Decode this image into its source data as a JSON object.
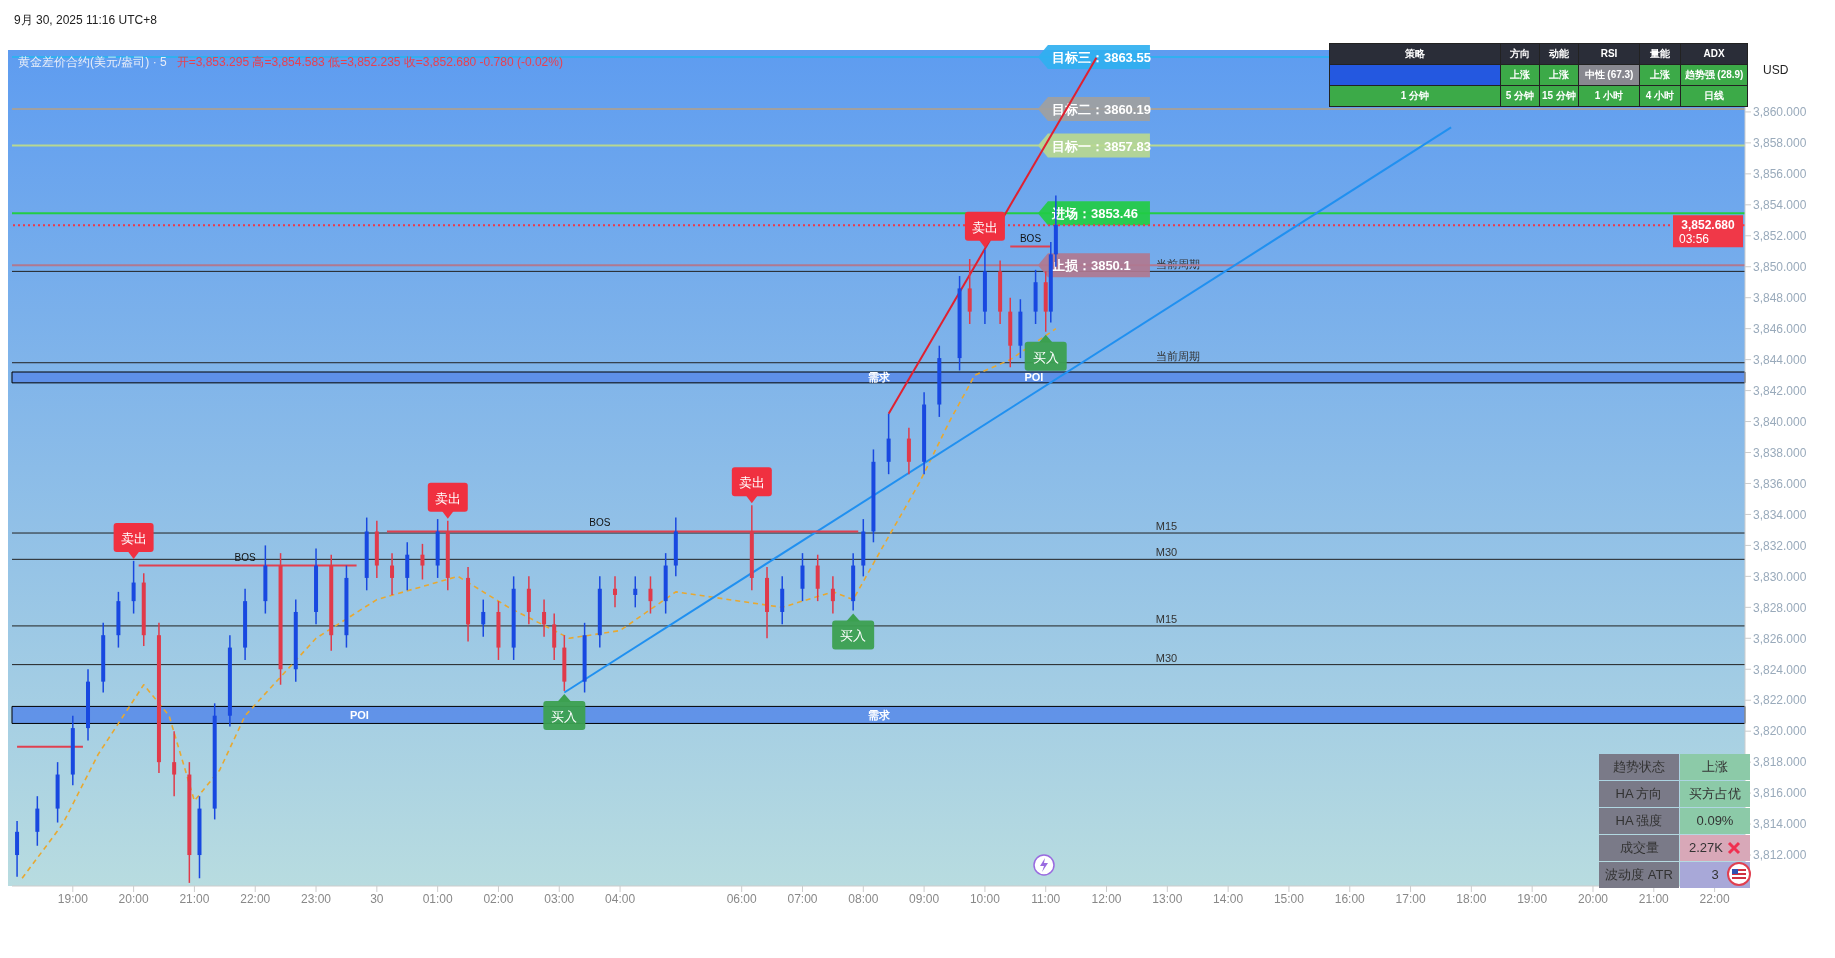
{
  "chart_data": [
    {
      "type": "candlestick",
      "title": "黄金差价合约(美元/盎司) · 5",
      "subtitle": "开=3,853.295  高=3,854.583  低=3,852.235  收=3,852.680  -0.780 (-0.02%)",
      "x": [
        "2025-09-29T18:05",
        "2025-09-29T18:25",
        "2025-09-29T18:45",
        "2025-09-29T19:00",
        "2025-09-29T19:15",
        "2025-09-29T19:30",
        "2025-09-29T19:45",
        "2025-09-29T20:00",
        "2025-09-29T20:10",
        "2025-09-29T20:25",
        "2025-09-29T20:40",
        "2025-09-29T20:55",
        "2025-09-29T21:05",
        "2025-09-29T21:20",
        "2025-09-29T21:35",
        "2025-09-29T21:50",
        "2025-09-29T22:10",
        "2025-09-29T22:25",
        "2025-09-29T22:40",
        "2025-09-29T23:00",
        "2025-09-29T23:15",
        "2025-09-29T23:30",
        "2025-09-29T23:50",
        "2025-09-30T00:00",
        "2025-09-30T00:15",
        "2025-09-30T00:30",
        "2025-09-30T00:45",
        "2025-09-30T01:00",
        "2025-09-30T01:10",
        "2025-09-30T01:30",
        "2025-09-30T01:45",
        "2025-09-30T02:00",
        "2025-09-30T02:15",
        "2025-09-30T02:30",
        "2025-09-30T02:45",
        "2025-09-30T02:55",
        "2025-09-30T03:05",
        "2025-09-30T03:25",
        "2025-09-30T03:40",
        "2025-09-30T03:55",
        "2025-09-30T04:15",
        "2025-09-30T04:30",
        "2025-09-30T04:45",
        "2025-09-30T04:55",
        "2025-09-30T06:10",
        "2025-09-30T06:25",
        "2025-09-30T06:40",
        "2025-09-30T07:00",
        "2025-09-30T07:15",
        "2025-09-30T07:30",
        "2025-09-30T07:50",
        "2025-09-30T08:00",
        "2025-09-30T08:10",
        "2025-09-30T08:25",
        "2025-09-30T08:45",
        "2025-09-30T09:00",
        "2025-09-30T09:15",
        "2025-09-30T09:35",
        "2025-09-30T09:45",
        "2025-09-30T10:00",
        "2025-09-30T10:15",
        "2025-09-30T10:25",
        "2025-09-30T10:35",
        "2025-09-30T10:50",
        "2025-09-30T11:00",
        "2025-09-30T11:05",
        "2025-09-30T11:10"
      ],
      "ohlc": [
        [
          3812.0,
          3814.2,
          3810.6,
          3813.5
        ],
        [
          3813.5,
          3815.8,
          3812.6,
          3815.0
        ],
        [
          3815.0,
          3818.0,
          3814.1,
          3817.2
        ],
        [
          3817.2,
          3821.0,
          3816.5,
          3820.2
        ],
        [
          3820.2,
          3824.0,
          3819.4,
          3823.2
        ],
        [
          3823.2,
          3827.0,
          3822.5,
          3826.2
        ],
        [
          3826.2,
          3829.0,
          3825.4,
          3828.4
        ],
        [
          3828.4,
          3831.0,
          3827.6,
          3829.6
        ],
        [
          3829.6,
          3830.2,
          3825.5,
          3826.2
        ],
        [
          3826.2,
          3827.0,
          3817.3,
          3818.0
        ],
        [
          3818.0,
          3820.0,
          3815.8,
          3817.2
        ],
        [
          3817.2,
          3818.0,
          3810.2,
          3812.0
        ],
        [
          3812.0,
          3815.8,
          3810.5,
          3815.0
        ],
        [
          3815.0,
          3821.8,
          3814.3,
          3821.0
        ],
        [
          3821.0,
          3826.2,
          3820.3,
          3825.4
        ],
        [
          3825.4,
          3829.2,
          3824.6,
          3828.4
        ],
        [
          3828.4,
          3832.0,
          3827.6,
          3830.7
        ],
        [
          3830.7,
          3831.5,
          3823.0,
          3824.0
        ],
        [
          3824.0,
          3828.5,
          3823.2,
          3827.7
        ],
        [
          3827.7,
          3831.8,
          3826.9,
          3830.7
        ],
        [
          3830.7,
          3831.4,
          3825.2,
          3826.2
        ],
        [
          3826.2,
          3830.7,
          3825.4,
          3829.9
        ],
        [
          3829.9,
          3833.8,
          3829.1,
          3832.9
        ],
        [
          3832.9,
          3833.6,
          3829.9,
          3830.7
        ],
        [
          3830.7,
          3831.5,
          3828.8,
          3829.9
        ],
        [
          3829.9,
          3832.2,
          3829.1,
          3831.4
        ],
        [
          3831.4,
          3832.1,
          3829.8,
          3830.7
        ],
        [
          3830.7,
          3833.7,
          3829.9,
          3832.9
        ],
        [
          3832.9,
          3833.6,
          3829.1,
          3829.9
        ],
        [
          3829.9,
          3830.6,
          3825.8,
          3826.9
        ],
        [
          3826.9,
          3828.5,
          3826.1,
          3827.7
        ],
        [
          3827.7,
          3828.4,
          3824.6,
          3825.4
        ],
        [
          3825.4,
          3830.0,
          3824.6,
          3829.2
        ],
        [
          3829.2,
          3830.0,
          3826.9,
          3827.7
        ],
        [
          3827.7,
          3828.5,
          3826.1,
          3826.9
        ],
        [
          3826.9,
          3827.6,
          3824.6,
          3825.4
        ],
        [
          3825.4,
          3826.2,
          3822.6,
          3823.2
        ],
        [
          3823.2,
          3827.0,
          3822.5,
          3826.2
        ],
        [
          3826.2,
          3830.0,
          3825.4,
          3829.2
        ],
        [
          3829.2,
          3830.0,
          3828.0,
          3828.8
        ],
        [
          3828.8,
          3830.0,
          3828.0,
          3829.2
        ],
        [
          3829.2,
          3830.0,
          3827.6,
          3828.4
        ],
        [
          3828.4,
          3831.5,
          3827.6,
          3830.7
        ],
        [
          3830.7,
          3833.8,
          3830.0,
          3832.9
        ],
        [
          3832.9,
          3834.6,
          3829.1,
          3829.9
        ],
        [
          3829.9,
          3830.6,
          3826.0,
          3827.7
        ],
        [
          3827.7,
          3830.0,
          3826.9,
          3829.2
        ],
        [
          3829.2,
          3831.5,
          3828.4,
          3830.7
        ],
        [
          3830.7,
          3831.4,
          3828.4,
          3829.2
        ],
        [
          3829.2,
          3830.0,
          3827.6,
          3828.4
        ],
        [
          3828.4,
          3831.5,
          3827.8,
          3830.7
        ],
        [
          3830.7,
          3833.7,
          3830.0,
          3832.9
        ],
        [
          3832.9,
          3838.2,
          3832.2,
          3837.4
        ],
        [
          3837.4,
          3840.5,
          3836.6,
          3838.9
        ],
        [
          3838.9,
          3839.6,
          3836.6,
          3837.4
        ],
        [
          3837.4,
          3841.9,
          3836.6,
          3841.1
        ],
        [
          3841.1,
          3844.9,
          3840.3,
          3844.1
        ],
        [
          3844.1,
          3849.4,
          3843.3,
          3848.6
        ],
        [
          3848.6,
          3850.5,
          3846.3,
          3847.1
        ],
        [
          3847.1,
          3851.1,
          3846.3,
          3849.7
        ],
        [
          3849.7,
          3850.4,
          3846.3,
          3847.1
        ],
        [
          3847.1,
          3848.0,
          3843.5,
          3844.9
        ],
        [
          3844.9,
          3847.9,
          3844.1,
          3847.1
        ],
        [
          3847.1,
          3849.8,
          3846.3,
          3849.0
        ],
        [
          3849.0,
          3849.7,
          3845.8,
          3847.1
        ],
        [
          3847.1,
          3851.6,
          3846.4,
          3850.8
        ],
        [
          3850.8,
          3854.6,
          3850.0,
          3852.7
        ]
      ],
      "series": [
        {
          "type": "line",
          "color": "#e8a830",
          "line_style": "dashed",
          "x": [
            "2025-09-29T18:10",
            "2025-09-29T18:50",
            "2025-09-29T19:25",
            "2025-09-29T20:10",
            "2025-09-29T20:35",
            "2025-09-29T21:00",
            "2025-09-29T21:25",
            "2025-09-29T21:50",
            "2025-09-29T22:25",
            "2025-09-29T23:00",
            "2025-09-30T00:00",
            "2025-09-30T01:20",
            "2025-09-30T02:10",
            "2025-09-30T03:10",
            "2025-09-30T04:00",
            "2025-09-30T04:55",
            "2025-09-30T06:40",
            "2025-09-30T07:30",
            "2025-09-30T07:50",
            "2025-09-30T08:20",
            "2025-09-30T08:55",
            "2025-09-30T09:25",
            "2025-09-30T09:50",
            "2025-09-30T10:25",
            "2025-09-30T11:10"
          ],
          "values": [
            3810.5,
            3814.0,
            3818.5,
            3823.0,
            3821.0,
            3815.5,
            3817.5,
            3821.0,
            3823.5,
            3826.0,
            3828.5,
            3830.0,
            3828.0,
            3826.0,
            3826.5,
            3829.0,
            3828.0,
            3829.0,
            3828.5,
            3832.0,
            3836.0,
            3840.0,
            3843.0,
            3844.0,
            3846.0
          ]
        },
        {
          "type": "line",
          "color": "#2090f0",
          "line_style": "solid",
          "x": [
            "2025-09-30T03:05",
            "2025-09-30T17:40"
          ],
          "values": [
            3822.5,
            3859.0
          ]
        },
        {
          "type": "line",
          "color": "#e02030",
          "line_style": "solid",
          "x": [
            "2025-09-30T08:25",
            "2025-09-30T11:50"
          ],
          "values": [
            3840.5,
            3863.5
          ]
        },
        {
          "type": "line",
          "color": "#e04050",
          "line_style": "solid",
          "x": [
            "2025-09-29T18:05",
            "2025-09-29T19:10"
          ],
          "values": [
            3819.0,
            3819.0
          ]
        },
        {
          "type": "line",
          "color": "#e04050",
          "line_style": "solid",
          "x": [
            "2025-09-29T20:05",
            "2025-09-29T23:40"
          ],
          "values": [
            3830.7,
            3830.7
          ]
        },
        {
          "type": "line",
          "color": "#e04050",
          "line_style": "solid",
          "x": [
            "2025-09-30T00:10",
            "2025-09-30T07:55"
          ],
          "values": [
            3832.9,
            3832.9
          ]
        },
        {
          "type": "line",
          "color": "#e04050",
          "line_style": "solid",
          "x": [
            "2025-09-30T10:25",
            "2025-09-30T11:05"
          ],
          "values": [
            3851.3,
            3851.3
          ]
        }
      ],
      "xlim": [
        "2025-09-29T18:00",
        "2025-09-30T22:30"
      ],
      "xticks": [
        {
          "value": "2025-09-29T19:00",
          "label": "19:00"
        },
        {
          "value": "2025-09-29T20:00",
          "label": "20:00"
        },
        {
          "value": "2025-09-29T21:00",
          "label": "21:00"
        },
        {
          "value": "2025-09-29T22:00",
          "label": "22:00"
        },
        {
          "value": "2025-09-29T23:00",
          "label": "23:00"
        },
        {
          "value": "2025-09-30T00:00",
          "label": "30"
        },
        {
          "value": "2025-09-30T01:00",
          "label": "01:00"
        },
        {
          "value": "2025-09-30T02:00",
          "label": "02:00"
        },
        {
          "value": "2025-09-30T03:00",
          "label": "03:00"
        },
        {
          "value": "2025-09-30T04:00",
          "label": "04:00"
        },
        {
          "value": "2025-09-30T06:00",
          "label": "06:00"
        },
        {
          "value": "2025-09-30T07:00",
          "label": "07:00"
        },
        {
          "value": "2025-09-30T08:00",
          "label": "08:00"
        },
        {
          "value": "2025-09-30T09:00",
          "label": "09:00"
        },
        {
          "value": "2025-09-30T10:00",
          "label": "10:00"
        },
        {
          "value": "2025-09-30T11:00",
          "label": "11:00"
        },
        {
          "value": "2025-09-30T12:00",
          "label": "12:00"
        },
        {
          "value": "2025-09-30T13:00",
          "label": "13:00"
        },
        {
          "value": "2025-09-30T14:00",
          "label": "14:00"
        },
        {
          "value": "2025-09-30T15:00",
          "label": "15:00"
        },
        {
          "value": "2025-09-30T16:00",
          "label": "16:00"
        },
        {
          "value": "2025-09-30T17:00",
          "label": "17:00"
        },
        {
          "value": "2025-09-30T18:00",
          "label": "18:00"
        },
        {
          "value": "2025-09-30T19:00",
          "label": "19:00"
        },
        {
          "value": "2025-09-30T20:00",
          "label": "20:00"
        },
        {
          "value": "2025-09-30T21:00",
          "label": "21:00"
        },
        {
          "value": "2025-09-30T22:00",
          "label": "22:00"
        }
      ],
      "ylim": [
        3810.0,
        3864.0
      ],
      "yticks": [
        {
          "value": 3812,
          "label": "3,812.000"
        },
        {
          "value": 3814,
          "label": "3,814.000"
        },
        {
          "value": 3816,
          "label": "3,816.000"
        },
        {
          "value": 3818,
          "label": "3,818.000"
        },
        {
          "value": 3820,
          "label": "3,820.000"
        },
        {
          "value": 3822,
          "label": "3,822.000"
        },
        {
          "value": 3824,
          "label": "3,824.000"
        },
        {
          "value": 3826,
          "label": "3,826.000"
        },
        {
          "value": 3828,
          "label": "3,828.000"
        },
        {
          "value": 3830,
          "label": "3,830.000"
        },
        {
          "value": 3832,
          "label": "3,832.000"
        },
        {
          "value": 3834,
          "label": "3,834.000"
        },
        {
          "value": 3836,
          "label": "3,836.000"
        },
        {
          "value": 3838,
          "label": "3,838.000"
        },
        {
          "value": 3840,
          "label": "3,840.000"
        },
        {
          "value": 3842,
          "label": "3,842.000"
        },
        {
          "value": 3844,
          "label": "3,844.000"
        },
        {
          "value": 3846,
          "label": "3,846.000"
        },
        {
          "value": 3848,
          "label": "3,848.000"
        },
        {
          "value": 3850,
          "label": "3,850.000"
        },
        {
          "value": 3852,
          "label": "3,852.000"
        },
        {
          "value": 3854,
          "label": "3,854.000"
        },
        {
          "value": 3856,
          "label": "3,856.000"
        },
        {
          "value": 3858,
          "label": "3,858.000"
        },
        {
          "value": 3860,
          "label": "3,860.000"
        }
      ],
      "ref_lines": [
        {
          "axis": "y",
          "value": 3849.7,
          "label": "当前周期"
        },
        {
          "axis": "y",
          "value": 3843.8,
          "label": "当前周期"
        },
        {
          "axis": "y",
          "value": 3832.8,
          "label": "M15"
        },
        {
          "axis": "y",
          "value": 3831.1,
          "label": "M30"
        },
        {
          "axis": "y",
          "value": 3826.8,
          "label": "M15"
        },
        {
          "axis": "y",
          "value": 3824.3,
          "label": "M30"
        },
        {
          "axis": "y",
          "value": 3863.55,
          "label": "目标三：3863.55",
          "color": "#30b0f0"
        },
        {
          "axis": "y",
          "value": 3860.19,
          "label": "目标二：3860.19",
          "color": "#a0a0a0"
        },
        {
          "axis": "y",
          "value": 3857.83,
          "label": "目标一：3857.83",
          "color": "#b8d890"
        },
        {
          "axis": "y",
          "value": 3853.46,
          "label": "进场：3853.46",
          "color": "#22cc44"
        },
        {
          "axis": "y",
          "value": 3850.1,
          "label": "止损：3850.1",
          "color": "#b07890"
        },
        {
          "axis": "y",
          "value": 3852.68,
          "label": "3,852.680",
          "color": "#f03848",
          "line_style": "dotted"
        }
      ],
      "bands": [
        {
          "axis": "y",
          "from": 3820.5,
          "to": 3821.6,
          "color": "#5a8ce8",
          "label": "需求"
        },
        {
          "axis": "y",
          "from": 3842.5,
          "to": 3843.2,
          "color": "#5a8ce8",
          "label": "需求"
        }
      ],
      "annotations": [
        "9月 30, 2025 11:16 UTC+8",
        "USD",
        "03:56",
        "POI",
        {
          "text": "卖出",
          "x": "2025-09-29T20:00",
          "y": 3831.0
        },
        {
          "text": "卖出",
          "x": "2025-09-30T01:10",
          "y": 3833.6
        },
        {
          "text": "卖出",
          "x": "2025-09-30T06:10",
          "y": 3834.6
        },
        {
          "text": "卖出",
          "x": "2025-09-30T10:00",
          "y": 3851.1
        },
        {
          "text": "买入",
          "x": "2025-09-30T03:05",
          "y": 3822.6
        },
        {
          "text": "买入",
          "x": "2025-09-30T07:50",
          "y": 3827.8
        },
        {
          "text": "买入",
          "x": "2025-09-30T11:00",
          "y": 3845.8
        },
        {
          "text": "BOS",
          "x": "2025-09-29T21:50",
          "y": 3830.7
        },
        {
          "text": "BOS",
          "x": "2025-09-30T03:40",
          "y": 3832.9
        },
        {
          "text": "BOS",
          "x": "2025-09-30T10:45",
          "y": 3851.3
        },
        {
          "text": "POI",
          "x": "2025-09-30T10:35",
          "y": 3842.85
        }
      ]
    },
    {
      "type": "other",
      "annotations": [
        "策略",
        "方向",
        "动能",
        "RSI",
        "量能",
        "ADX",
        "上涨",
        "上涨",
        "中性 (67.3)",
        "上涨",
        "趋势强 (28.9)",
        "1 分钟",
        "5 分钟",
        "15 分钟",
        "1 小时",
        "4 小时",
        "日线"
      ]
    },
    {
      "type": "other",
      "annotations": [
        "趋势状态",
        "上涨",
        "HA 方向",
        "买方占优",
        "HA 强度",
        "0.09%",
        "成交量",
        "2.27K",
        "波动度 ATR",
        "3"
      ]
    }
  ]
}
